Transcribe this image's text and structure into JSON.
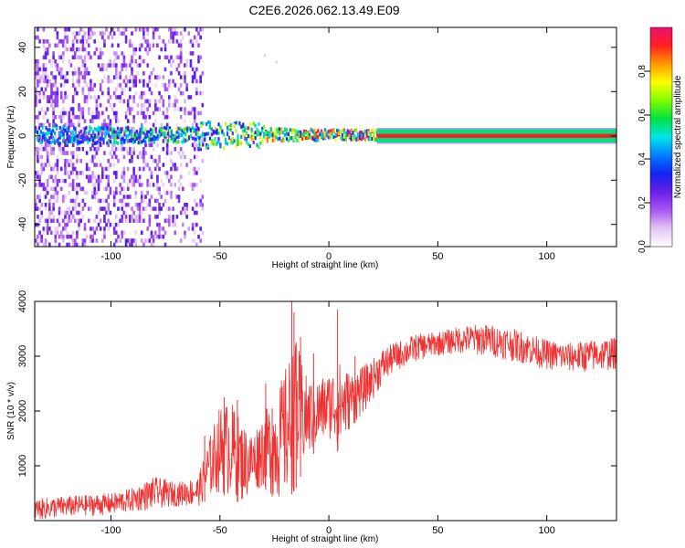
{
  "chart_data": [
    {
      "type": "heatmap",
      "title": "C2E6.2026.062.13.49.E09",
      "xlabel": "Height of straight line (km)",
      "ylabel": "Frequency (Hz)",
      "xlim": [
        -135,
        132
      ],
      "ylim": [
        -50,
        49
      ],
      "xticks": [
        -100,
        -50,
        0,
        50,
        100
      ],
      "yticks": [
        -40,
        -20,
        0,
        20,
        40
      ],
      "xtick_labels": [
        "-100",
        "-50",
        "0",
        "50",
        "100"
      ],
      "ytick_labels": [
        "-40",
        "-20",
        "0",
        "20",
        "40"
      ],
      "band_center_hz": 0,
      "band_halfwidth_hz": 3,
      "scatter_region_km": [
        -135,
        -58
      ],
      "solid_band_start_km": 22,
      "colorbar": {
        "label": "Normalized spectral amplitude",
        "range": [
          0,
          1
        ],
        "ticks": [
          0.0,
          0.2,
          0.4,
          0.6,
          0.8
        ],
        "tick_labels": [
          "0.0",
          "0.2",
          "0.4",
          "0.6",
          "0.8"
        ],
        "colors": [
          "#ffffff",
          "#e3c6f3",
          "#a855f0",
          "#6a1fe8",
          "#1222f0",
          "#0080ff",
          "#00e6e6",
          "#00e040",
          "#7fff00",
          "#ffff00",
          "#ff9900",
          "#ff2020",
          "#ee1070"
        ]
      }
    },
    {
      "type": "line",
      "title": "",
      "xlabel": "Height of straight line (km)",
      "ylabel": "SNR (10 * v/v)",
      "xlim": [
        -135,
        132
      ],
      "ylim": [
        0,
        4000
      ],
      "xticks": [
        -100,
        -50,
        0,
        50,
        100
      ],
      "yticks": [
        1000,
        2000,
        3000,
        4000
      ],
      "xtick_labels": [
        "-100",
        "-50",
        "0",
        "50",
        "100"
      ],
      "ytick_labels": [
        "1000",
        "2000",
        "3000",
        "4000"
      ],
      "line_color": "#ee3333",
      "envelope": {
        "x": [
          -135,
          -120,
          -100,
          -90,
          -80,
          -70,
          -60,
          -55,
          -50,
          -45,
          -40,
          -35,
          -30,
          -25,
          -20,
          -15,
          -10,
          -5,
          0,
          5,
          10,
          15,
          20,
          25,
          30,
          40,
          50,
          60,
          70,
          80,
          90,
          100,
          110,
          120,
          132
        ],
        "low": [
          0,
          60,
          100,
          150,
          200,
          260,
          250,
          400,
          500,
          400,
          300,
          500,
          600,
          400,
          300,
          600,
          1100,
          1300,
          1500,
          1200,
          1700,
          1900,
          2200,
          2500,
          2700,
          2900,
          3000,
          3050,
          3000,
          2950,
          2850,
          2750,
          2700,
          2700,
          2750
        ],
        "high": [
          400,
          450,
          500,
          600,
          800,
          700,
          800,
          1500,
          2100,
          2200,
          1800,
          1600,
          2000,
          2200,
          2800,
          3300,
          2600,
          2600,
          2700,
          2900,
          2700,
          2800,
          2950,
          3150,
          3250,
          3400,
          3450,
          3550,
          3600,
          3550,
          3450,
          3300,
          3250,
          3300,
          3350
        ]
      },
      "spikes": [
        {
          "x": -57,
          "y": 1550
        },
        {
          "x": -48,
          "y": 2250
        },
        {
          "x": -42,
          "y": 2200
        },
        {
          "x": -29,
          "y": 2500
        },
        {
          "x": -26,
          "y": 2050
        },
        {
          "x": -17,
          "y": 4000
        },
        {
          "x": -16,
          "y": 3800
        },
        {
          "x": -15,
          "y": 3250
        },
        {
          "x": -13,
          "y": 3350
        },
        {
          "x": -7,
          "y": 3050
        },
        {
          "x": 4,
          "y": 3850
        },
        {
          "x": 12,
          "y": 3000
        }
      ]
    }
  ]
}
